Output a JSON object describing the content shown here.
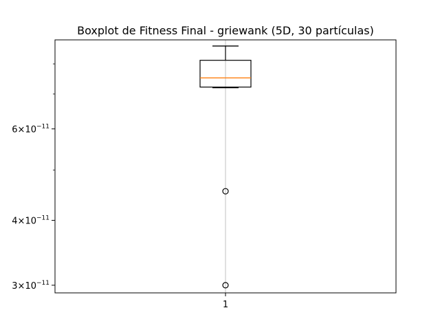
{
  "chart_data": {
    "type": "boxplot",
    "title": "Boxplot de Fitness Final - griewank (5D, 30 partículas)",
    "xlabel": "",
    "ylabel": "",
    "y_scale": "log",
    "ylim": [
      2.9e-11,
      8.9e-11
    ],
    "grid": "vertical only",
    "categories": [
      "1"
    ],
    "boxes": [
      {
        "category": "1",
        "whisker_low": 7.2e-11,
        "q1": 7.22e-11,
        "median": 7.52e-11,
        "q3": 8.13e-11,
        "whisker_high": 8.66e-11,
        "outliers": [
          4.55e-11,
          3e-11
        ]
      }
    ],
    "y_major_ticks": [
      {
        "value": 3e-11,
        "mantissa": "3",
        "exponent": "−11"
      },
      {
        "value": 4e-11,
        "mantissa": "4",
        "exponent": "−11"
      },
      {
        "value": 6e-11,
        "mantissa": "6",
        "exponent": "−11"
      }
    ],
    "y_minor_ticks": [
      5e-11,
      7e-11,
      8e-11
    ],
    "colors": {
      "box": "#000000",
      "median": "#ff7f0e",
      "grid": "#b0b0b0",
      "outlier": "#000000"
    }
  }
}
